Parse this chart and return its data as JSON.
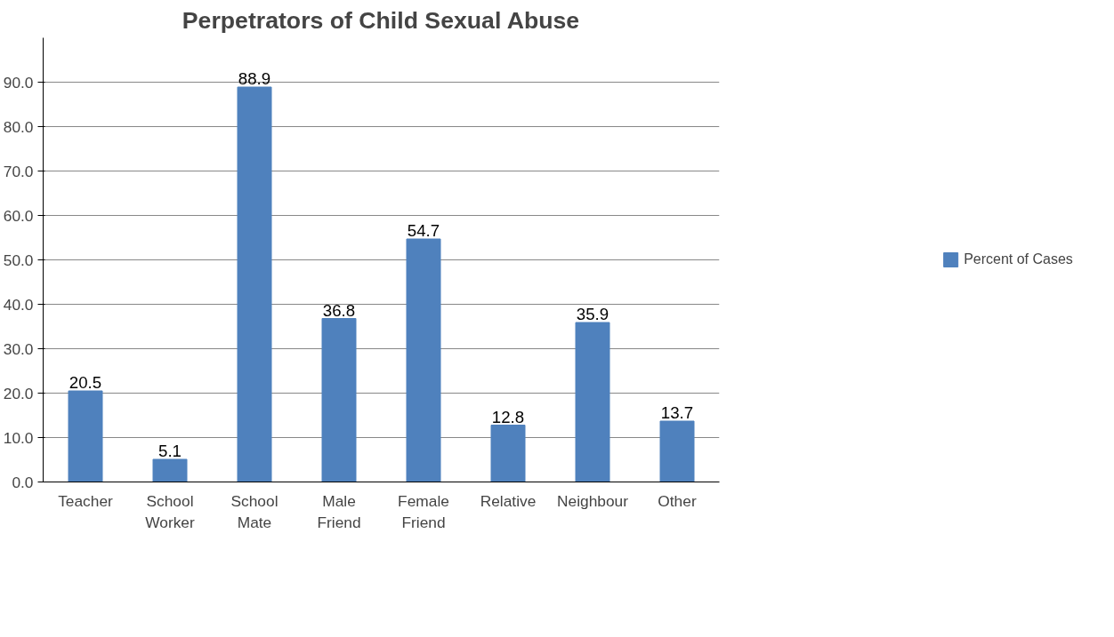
{
  "chart_data": {
    "type": "bar",
    "title": "Perpetrators of Child Sexual Abuse",
    "categories": [
      "Teacher",
      "School\nWorker",
      "School\nMate",
      "Male\nFriend",
      "Female\nFriend",
      "Relative",
      "Neighbour",
      "Other"
    ],
    "series": [
      {
        "name": "Percent of Cases",
        "color": "#4f81bd",
        "values": [
          20.5,
          5.1,
          88.9,
          36.8,
          54.7,
          12.8,
          35.9,
          13.7
        ]
      }
    ],
    "ylim": [
      0,
      100
    ],
    "yticks": [
      {
        "value": 0,
        "label": "0.0"
      },
      {
        "value": 10,
        "label": "10.0"
      },
      {
        "value": 20,
        "label": "20.0"
      },
      {
        "value": 30,
        "label": "30.0"
      },
      {
        "value": 40,
        "label": "40.0"
      },
      {
        "value": 50,
        "label": "50.0"
      },
      {
        "value": 60,
        "label": "60.0"
      },
      {
        "value": 70,
        "label": "70.0"
      },
      {
        "value": 80,
        "label": "80.0"
      },
      {
        "value": 90,
        "label": "90.0"
      }
    ],
    "grid": "y",
    "legend": "right",
    "data_labels": true
  }
}
